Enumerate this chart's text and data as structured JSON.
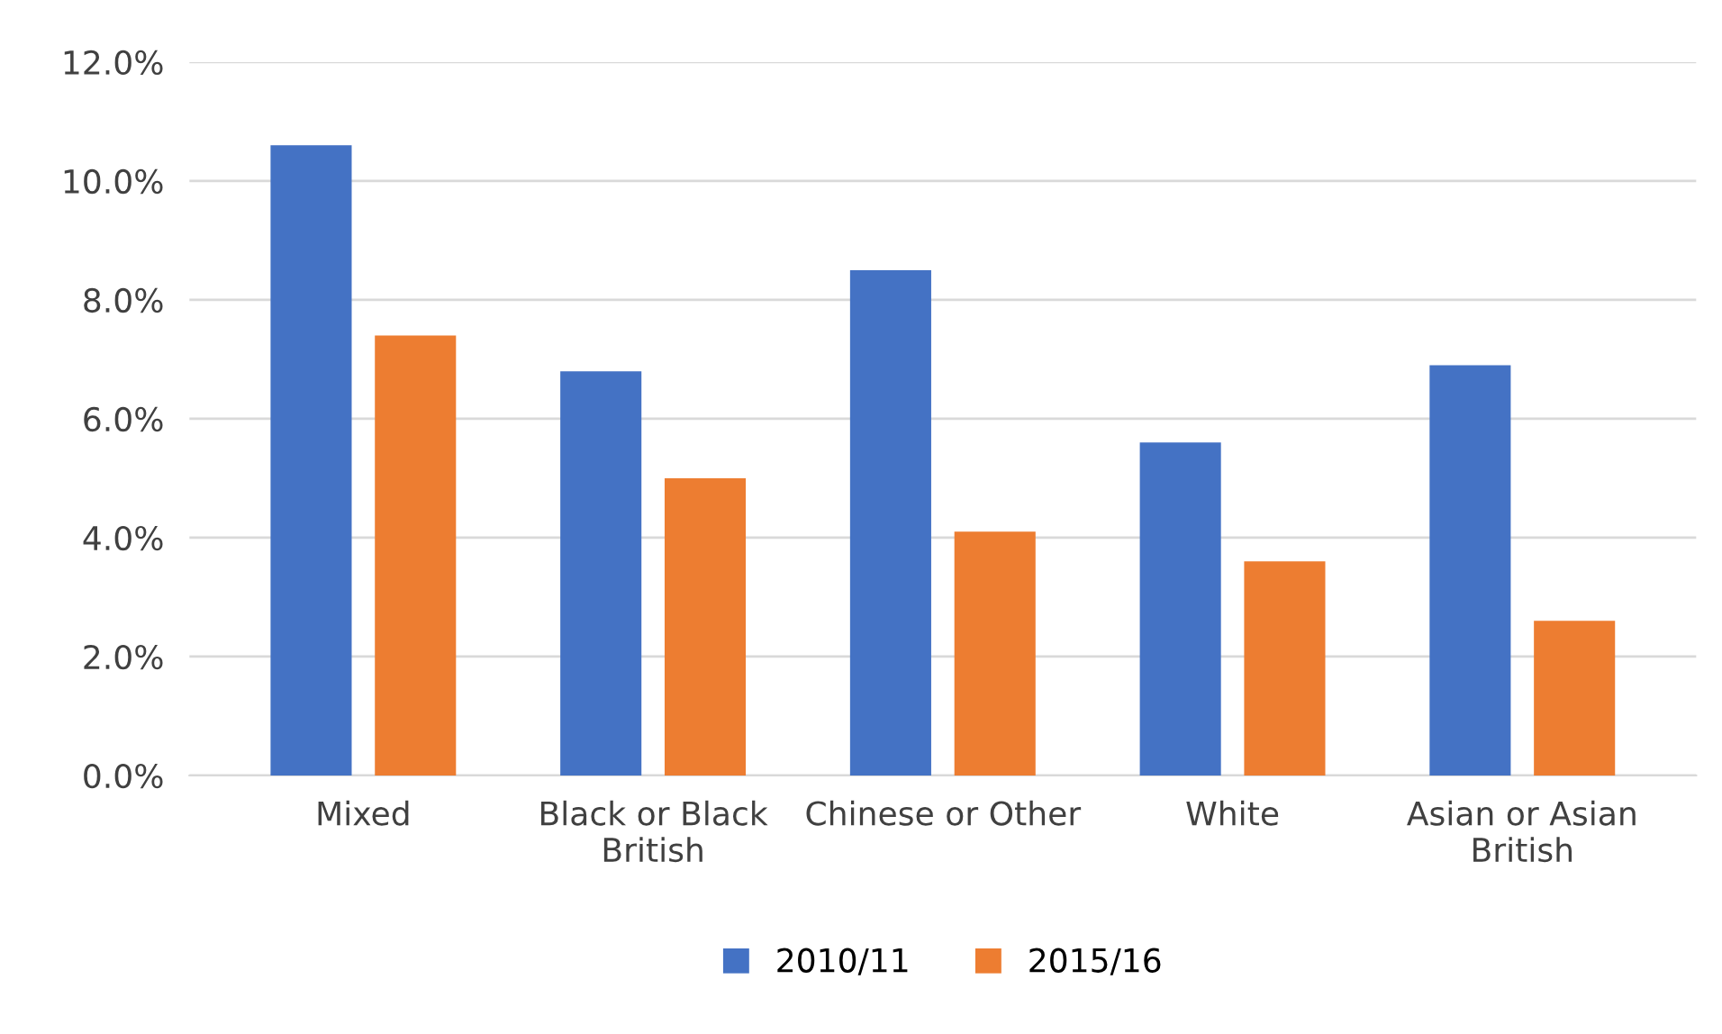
{
  "chart_data": {
    "type": "bar",
    "categories": [
      "Mixed",
      "Black or Black British",
      "Chinese or Other",
      "White",
      "Asian or Asian British"
    ],
    "series": [
      {
        "name": "2010/11",
        "color": "#4472c4",
        "values": [
          10.6,
          6.8,
          8.5,
          5.6,
          6.9
        ]
      },
      {
        "name": "2015/16",
        "color": "#ed7d31",
        "values": [
          7.4,
          5.0,
          4.1,
          3.6,
          2.6
        ]
      }
    ],
    "ylim": [
      0,
      12
    ],
    "yticks": [
      {
        "value": 0,
        "label": "0.0%"
      },
      {
        "value": 2,
        "label": "2.0%"
      },
      {
        "value": 4,
        "label": "4.0%"
      },
      {
        "value": 6,
        "label": "6.0%"
      },
      {
        "value": 8,
        "label": "8.0%"
      },
      {
        "value": 10,
        "label": "10.0%"
      },
      {
        "value": 12,
        "label": "12.0%"
      }
    ],
    "grid": "y",
    "legend": "bottom"
  }
}
